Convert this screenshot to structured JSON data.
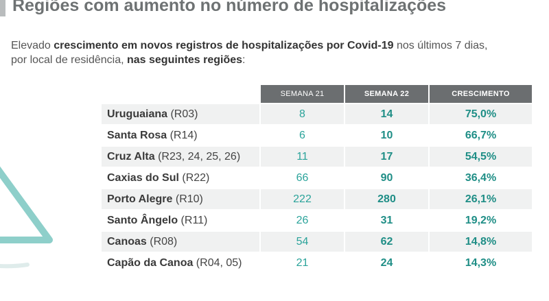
{
  "title": "Regiões com aumento no número de hospitalizações",
  "intro": {
    "part1": "Elevado ",
    "bold1": "crescimento em novos registros de hospitalizações por Covid-19",
    "part2": " nos últimos 7 dias,",
    "part3": "por local de residência, ",
    "bold2": "nas seguintes regiões",
    "part4": ":"
  },
  "table": {
    "headers": [
      "SEMANA 21",
      "SEMANA 22",
      "CRESCIMENTO"
    ],
    "rows": [
      {
        "name": "Uruguaiana",
        "code": " (R03)",
        "w21": "8",
        "w22": "14",
        "growth": "75,0%"
      },
      {
        "name": "Santa Rosa",
        "code": " (R14)",
        "w21": "6",
        "w22": "10",
        "growth": "66,7%"
      },
      {
        "name": "Cruz Alta",
        "code": " (R23, 24, 25, 26)",
        "w21": "11",
        "w22": "17",
        "growth": "54,5%"
      },
      {
        "name": "Caxias do Sul",
        "code": " (R22)",
        "w21": "66",
        "w22": "90",
        "growth": "36,4%"
      },
      {
        "name": "Porto Alegre",
        "code": " (R10)",
        "w21": "222",
        "w22": "280",
        "growth": "26,1%"
      },
      {
        "name": "Santo Ângelo",
        "code": " (R11)",
        "w21": "26",
        "w22": "31",
        "growth": "19,2%"
      },
      {
        "name": "Canoas",
        "code": " (R08)",
        "w21": "54",
        "w22": "62",
        "growth": "14,8%"
      },
      {
        "name": "Capão da Canoa",
        "code": " (R04, 05)",
        "w21": "21",
        "w22": "24",
        "growth": "14,3%"
      }
    ]
  },
  "colors": {
    "accent_teal": "#1f8e86",
    "header_gray": "#6b6e70",
    "decor_triangle": "#8ecfca"
  }
}
